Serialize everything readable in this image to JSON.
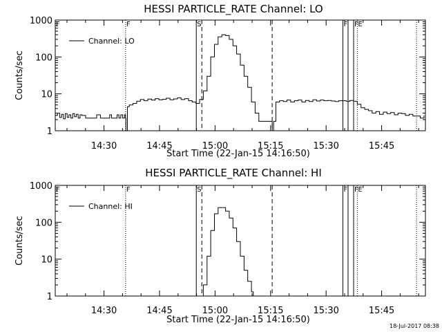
{
  "footer": {
    "timestamp": "18-Jul-2017 08:38"
  },
  "chart_data": [
    {
      "type": "line",
      "title": "HESSI PARTICLE_RATE Channel: LO",
      "xlabel": "Start Time (22-Jan-15 14:16:50)",
      "ylabel": "Counts/sec",
      "yscale": "log",
      "ylim": [
        1,
        1000
      ],
      "xlim_minutes_after_start": [
        0,
        100
      ],
      "x_ticks": [
        {
          "label": "14:30",
          "minute": 13.17
        },
        {
          "label": "14:45",
          "minute": 28.17
        },
        {
          "label": "15:00",
          "minute": 43.17
        },
        {
          "label": "15:15",
          "minute": 58.17
        },
        {
          "label": "15:30",
          "minute": 73.17
        },
        {
          "label": "15:45",
          "minute": 88.17
        }
      ],
      "y_ticks": [
        {
          "label": "1",
          "value": 1
        },
        {
          "label": "10",
          "value": 10
        },
        {
          "label": "100",
          "value": 100
        },
        {
          "label": "1000",
          "value": 1000
        }
      ],
      "legend": {
        "label": "Channel: LO",
        "position": "top-left"
      },
      "grid": false,
      "color": "#000000",
      "markers": [
        {
          "minute": 0.0,
          "style": "solid",
          "letter": "F"
        },
        {
          "minute": 19.0,
          "style": "dotted",
          "letter": "F"
        },
        {
          "minute": 38.1,
          "style": "solid",
          "letter": "S"
        },
        {
          "minute": 39.6,
          "style": "dashed",
          "letter": ""
        },
        {
          "minute": 58.6,
          "style": "dashed",
          "letter": ""
        },
        {
          "minute": 77.7,
          "style": "solid",
          "letter": "F"
        },
        {
          "minute": 79.1,
          "style": "solid",
          "letter": ""
        },
        {
          "minute": 80.6,
          "style": "solid",
          "letter": "F"
        },
        {
          "minute": 81.6,
          "style": "dotted",
          "letter": "E"
        },
        {
          "minute": 97.6,
          "style": "dotted",
          "letter": ""
        }
      ],
      "series": [
        {
          "x": [
            0,
            0.6,
            1.2,
            1.7,
            2.2,
            2.7,
            3.2,
            3.7,
            4.2,
            4.7,
            5.2,
            5.7,
            6.2,
            6.7,
            7.2,
            7.7,
            8.2,
            8.7,
            9.2,
            9.7,
            10.2,
            10.7,
            11.2,
            11.7,
            12.2,
            12.7,
            13.2,
            13.7,
            14.2,
            14.7,
            15.2,
            15.7,
            16.2,
            16.7,
            17.2,
            17.7,
            18.2,
            18.7,
            19.0,
            19.1,
            19.5,
            20.0,
            21.0,
            22.0,
            23.0,
            24.0,
            25.0,
            26.0,
            27.0,
            28.0,
            29.0,
            30.0,
            31.0,
            32.0,
            33.0,
            34.0,
            35.0,
            36.0,
            37.0,
            38.0,
            39.0,
            40.0,
            41.0,
            42.0,
            43.0,
            44.0,
            45.0,
            46.0,
            47.0,
            48.0,
            49.0,
            50.0,
            51.0,
            52.0,
            53.0,
            54.0,
            55.0,
            56.0,
            57.0,
            58.0,
            58.6,
            59.0,
            59.6,
            60.6,
            61.6,
            62.6,
            63.6,
            64.6,
            65.6,
            66.6,
            67.6,
            68.6,
            69.6,
            70.6,
            71.6,
            72.6,
            73.6,
            74.6,
            75.6,
            76.6,
            77.6,
            78.6,
            79.6,
            80.6,
            81.6,
            82.6,
            83.6,
            84.6,
            85.6,
            86.6,
            87.6,
            88.6,
            89.6,
            90.6,
            91.6,
            92.6,
            93.6,
            94.6,
            95.6,
            96.6,
            97.6,
            98.6,
            99.6
          ],
          "y": [
            2.6,
            3.0,
            2.3,
            2.8,
            2.1,
            2.9,
            2.3,
            2.7,
            2.2,
            2.9,
            2.4,
            2.8,
            2.2,
            2.7,
            2.6,
            2.6,
            2.2,
            2.2,
            2.2,
            2.2,
            2.2,
            2.2,
            2.7,
            2.7,
            2.2,
            2.2,
            2.2,
            2.2,
            2.2,
            2.7,
            2.2,
            2.2,
            2.2,
            2.7,
            2.2,
            2.7,
            2.2,
            2.7,
            2.2,
            1.0,
            4.5,
            5.0,
            5.5,
            6.3,
            7.0,
            6.5,
            7.2,
            6.8,
            7.4,
            6.9,
            7.1,
            7.6,
            6.9,
            7.3,
            7.8,
            7.0,
            7.4,
            6.5,
            6.0,
            5.5,
            7.0,
            12.0,
            30.0,
            100.0,
            220.0,
            350.0,
            400.0,
            380.0,
            300.0,
            200.0,
            120.0,
            60.0,
            30.0,
            15.0,
            6.0,
            3.0,
            1.8,
            1.8,
            1.8,
            1.8,
            1.0,
            1.8,
            6.0,
            6.5,
            6.2,
            6.8,
            6.0,
            6.5,
            6.8,
            6.0,
            6.6,
            6.2,
            6.9,
            6.4,
            6.8,
            6.5,
            6.6,
            6.4,
            6.2,
            6.5,
            6.5,
            6.3,
            6.6,
            6.3,
            5.2,
            4.2,
            3.8,
            3.5,
            3.0,
            3.3,
            2.8,
            3.2,
            2.9,
            3.1,
            2.7,
            3.0,
            2.9,
            2.6,
            2.8,
            2.5,
            2.5,
            2.2,
            2.6
          ]
        }
      ]
    },
    {
      "type": "line",
      "title": "HESSI PARTICLE_RATE Channel: HI",
      "xlabel": "Start Time (22-Jan-15 14:16:50)",
      "ylabel": "Counts/sec",
      "yscale": "log",
      "ylim": [
        1,
        1000
      ],
      "xlim_minutes_after_start": [
        0,
        100
      ],
      "x_ticks": [
        {
          "label": "14:30",
          "minute": 13.17
        },
        {
          "label": "14:45",
          "minute": 28.17
        },
        {
          "label": "15:00",
          "minute": 43.17
        },
        {
          "label": "15:15",
          "minute": 58.17
        },
        {
          "label": "15:30",
          "minute": 73.17
        },
        {
          "label": "15:45",
          "minute": 88.17
        }
      ],
      "y_ticks": [
        {
          "label": "1",
          "value": 1
        },
        {
          "label": "10",
          "value": 10
        },
        {
          "label": "100",
          "value": 100
        },
        {
          "label": "1000",
          "value": 1000
        }
      ],
      "legend": {
        "label": "Channel: HI",
        "position": "top-left"
      },
      "grid": false,
      "color": "#000000",
      "markers": [
        {
          "minute": 0.0,
          "style": "solid",
          "letter": "F"
        },
        {
          "minute": 19.0,
          "style": "dotted",
          "letter": "F"
        },
        {
          "minute": 38.1,
          "style": "solid",
          "letter": "S"
        },
        {
          "minute": 39.6,
          "style": "dashed",
          "letter": ""
        },
        {
          "minute": 58.6,
          "style": "dashed",
          "letter": ""
        },
        {
          "minute": 77.7,
          "style": "solid",
          "letter": "F"
        },
        {
          "minute": 79.1,
          "style": "solid",
          "letter": ""
        },
        {
          "minute": 80.6,
          "style": "solid",
          "letter": "F"
        },
        {
          "minute": 81.6,
          "style": "dotted",
          "letter": "E"
        },
        {
          "minute": 97.6,
          "style": "dotted",
          "letter": ""
        }
      ],
      "series": [
        {
          "x": [
            39.4,
            40.0,
            41.0,
            42.0,
            43.0,
            44.0,
            45.0,
            46.0,
            47.0,
            48.0,
            49.0,
            50.0,
            51.0,
            52.0,
            53.0,
            53.5
          ],
          "y": [
            1.0,
            2.0,
            12.0,
            60.0,
            170.0,
            250.0,
            250.0,
            200.0,
            130.0,
            70.0,
            30.0,
            12.0,
            5.0,
            2.5,
            1.3,
            1.0
          ]
        }
      ]
    }
  ]
}
